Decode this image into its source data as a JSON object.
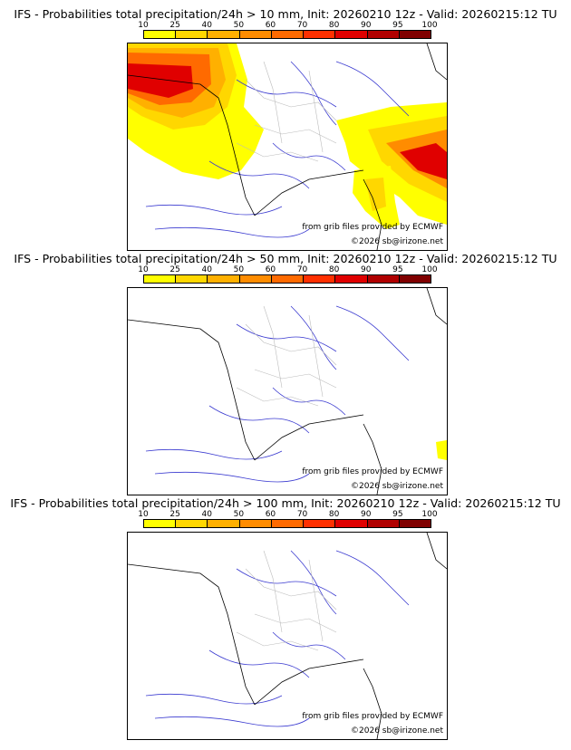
{
  "panels": [
    {
      "title": "IFS - Probabilities total precipitation/24h > 10 mm, Init: 20260210 12z - Valid: 20260215:12 TU",
      "source_credit": "from grib files provided by ECMWF",
      "copyright": "©2026 sb@irizone.net"
    },
    {
      "title": "IFS - Probabilities total precipitation/24h > 50 mm, Init: 20260210 12z - Valid: 20260215:12 TU",
      "source_credit": "from grib files provided by ECMWF",
      "copyright": "©2026 sb@irizone.net"
    },
    {
      "title": "IFS - Probabilities total precipitation/24h > 100 mm, Init: 20260210 12z - Valid: 20260215:12 TU",
      "source_credit": "from grib files provided by ECMWF",
      "copyright": "©2026 sb@irizone.net"
    }
  ],
  "color_scale": {
    "labels": [
      "10",
      "25",
      "40",
      "50",
      "60",
      "70",
      "80",
      "90",
      "95",
      "100"
    ],
    "colors": [
      "#ffff00",
      "#ffd700",
      "#ffb000",
      "#ff8c00",
      "#ff6a00",
      "#ff3000",
      "#e00000",
      "#b00000",
      "#800000"
    ]
  }
}
